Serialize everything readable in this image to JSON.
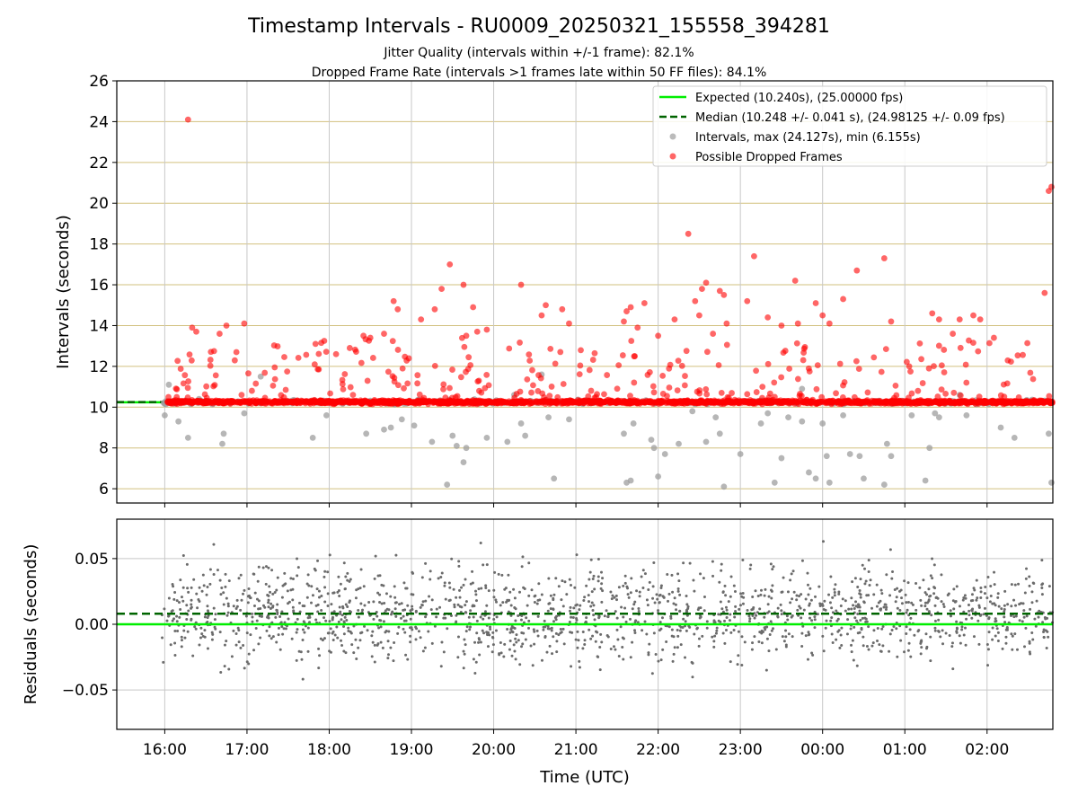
{
  "title": "Timestamp Intervals - RU0009_20250321_155558_394281",
  "subtitle_lines": [
    "Jitter Quality (intervals within +/-1 frame): 82.1%",
    "Dropped Frame Rate (intervals >1 frames late within 50 FF files): 84.1%"
  ],
  "colors": {
    "expected": "#00ee00",
    "median": "#006400",
    "intervals": "#9e9e9e",
    "dropped": "#ff0000",
    "major_grid": "#d2c07f",
    "grid": "#c8c8c8",
    "residuals": "#6b6b6b"
  },
  "chart_data": [
    {
      "type": "scatter",
      "name": "intervals-panel",
      "ylabel": "Intervals (seconds)",
      "xlabel": "",
      "xlim": [
        "15:25",
        "02:48"
      ],
      "ylim": [
        5.3,
        26
      ],
      "y_ticks": [
        6,
        8,
        10,
        12,
        14,
        16,
        18,
        20,
        22,
        24,
        26
      ],
      "x_ticks": [
        "16:00",
        "17:00",
        "18:00",
        "19:00",
        "20:00",
        "21:00",
        "22:00",
        "23:00",
        "00:00",
        "01:00",
        "02:00"
      ],
      "grid": true,
      "legend_position": "top-right",
      "legend": [
        "Expected (10.240s), (25.00000 fps)",
        "Median (10.248 +/- 0.041 s), (24.98125 +/- 0.09 fps)",
        "Intervals, max (24.127s), min (6.155s)",
        "Possible Dropped Frames"
      ],
      "series": [
        {
          "name": "Expected (10.240s), (25.00000 fps)",
          "kind": "hline",
          "y": 10.24,
          "x_range": [
            "15:25",
            "16:02"
          ]
        },
        {
          "name": "Median (10.248 +/- 0.041 s), (24.98125 +/- 0.09 fps)",
          "kind": "hline-dashed",
          "y": 10.248,
          "x_range": [
            "15:25",
            "16:02"
          ]
        },
        {
          "name": "Intervals, max (24.127s), min (6.155s)",
          "kind": "points",
          "count": 300,
          "baseline": 10.25,
          "highs": [
            [
              "16:03",
              11.1
            ],
            [
              "16:25",
              10.4
            ],
            [
              "17:10",
              11.5
            ],
            [
              "20:15",
              10.6
            ],
            [
              "20:35",
              11.6
            ],
            [
              "23:45",
              10.9
            ],
            [
              "01:40",
              10.6
            ]
          ],
          "lows": [
            [
              "16:00",
              9.6
            ],
            [
              "16:10",
              9.3
            ],
            [
              "16:17",
              8.5
            ],
            [
              "16:42",
              8.2
            ],
            [
              "16:43",
              8.7
            ],
            [
              "16:58",
              9.7
            ],
            [
              "17:48",
              8.5
            ],
            [
              "17:58",
              9.6
            ],
            [
              "18:27",
              8.7
            ],
            [
              "18:40",
              8.9
            ],
            [
              "18:45",
              9.0
            ],
            [
              "18:53",
              9.4
            ],
            [
              "19:02",
              9.1
            ],
            [
              "19:15",
              8.3
            ],
            [
              "19:26",
              6.2
            ],
            [
              "19:30",
              8.6
            ],
            [
              "19:33",
              8.1
            ],
            [
              "19:38",
              7.3
            ],
            [
              "19:40",
              8.0
            ],
            [
              "19:55",
              8.5
            ],
            [
              "20:10",
              8.3
            ],
            [
              "20:20",
              9.2
            ],
            [
              "20:23",
              8.6
            ],
            [
              "20:40",
              9.5
            ],
            [
              "20:44",
              6.5
            ],
            [
              "20:55",
              9.4
            ],
            [
              "21:35",
              8.7
            ],
            [
              "21:37",
              6.3
            ],
            [
              "21:40",
              6.4
            ],
            [
              "21:42",
              9.2
            ],
            [
              "21:55",
              8.4
            ],
            [
              "21:57",
              8.0
            ],
            [
              "22:00",
              6.6
            ],
            [
              "22:05",
              7.7
            ],
            [
              "22:15",
              8.2
            ],
            [
              "22:25",
              9.8
            ],
            [
              "22:35",
              8.3
            ],
            [
              "22:42",
              9.5
            ],
            [
              "22:45",
              8.7
            ],
            [
              "22:48",
              6.1
            ],
            [
              "23:00",
              7.7
            ],
            [
              "23:15",
              9.2
            ],
            [
              "23:20",
              9.7
            ],
            [
              "23:25",
              6.3
            ],
            [
              "23:30",
              7.5
            ],
            [
              "23:35",
              9.5
            ],
            [
              "23:45",
              9.3
            ],
            [
              "23:50",
              6.8
            ],
            [
              "23:55",
              6.5
            ],
            [
              "00:00",
              9.2
            ],
            [
              "00:03",
              7.6
            ],
            [
              "00:05",
              6.3
            ],
            [
              "00:15",
              9.6
            ],
            [
              "00:20",
              7.7
            ],
            [
              "00:27",
              7.6
            ],
            [
              "00:30",
              6.5
            ],
            [
              "00:45",
              6.2
            ],
            [
              "00:47",
              8.2
            ],
            [
              "00:50",
              7.6
            ],
            [
              "01:05",
              9.6
            ],
            [
              "01:15",
              6.4
            ],
            [
              "01:18",
              8.0
            ],
            [
              "01:22",
              9.7
            ],
            [
              "01:25",
              9.5
            ],
            [
              "01:45",
              9.6
            ],
            [
              "02:10",
              9.0
            ],
            [
              "02:20",
              8.5
            ],
            [
              "02:45",
              8.7
            ],
            [
              "02:47",
              6.3
            ]
          ]
        },
        {
          "name": "Possible Dropped Frames",
          "kind": "points",
          "count": 1900,
          "baseline": 10.25,
          "outliers": [
            [
              "16:17",
              24.1
            ],
            [
              "16:20",
              13.9
            ],
            [
              "16:23",
              13.7
            ],
            [
              "16:40",
              13.6
            ],
            [
              "16:45",
              14.0
            ],
            [
              "16:58",
              14.1
            ],
            [
              "17:50",
              13.1
            ],
            [
              "18:05",
              12.6
            ],
            [
              "18:15",
              12.9
            ],
            [
              "18:25",
              13.5
            ],
            [
              "18:30",
              13.4
            ],
            [
              "18:40",
              13.6
            ],
            [
              "18:47",
              15.2
            ],
            [
              "18:50",
              14.8
            ],
            [
              "19:07",
              14.3
            ],
            [
              "19:17",
              14.8
            ],
            [
              "19:22",
              15.8
            ],
            [
              "19:28",
              17.0
            ],
            [
              "19:38",
              16.0
            ],
            [
              "19:40",
              13.5
            ],
            [
              "19:45",
              14.9
            ],
            [
              "19:48",
              13.7
            ],
            [
              "19:55",
              13.8
            ],
            [
              "20:20",
              16.0
            ],
            [
              "20:35",
              14.5
            ],
            [
              "20:38",
              15.0
            ],
            [
              "20:50",
              14.8
            ],
            [
              "20:55",
              14.1
            ],
            [
              "21:35",
              14.2
            ],
            [
              "21:37",
              14.7
            ],
            [
              "21:40",
              14.9
            ],
            [
              "21:45",
              13.9
            ],
            [
              "21:50",
              15.1
            ],
            [
              "22:00",
              13.5
            ],
            [
              "22:12",
              14.3
            ],
            [
              "22:22",
              18.5
            ],
            [
              "22:27",
              15.2
            ],
            [
              "22:30",
              14.5
            ],
            [
              "22:32",
              15.8
            ],
            [
              "22:35",
              16.1
            ],
            [
              "22:40",
              13.6
            ],
            [
              "22:45",
              15.7
            ],
            [
              "22:48",
              15.5
            ],
            [
              "22:50",
              14.1
            ],
            [
              "23:05",
              15.2
            ],
            [
              "23:10",
              17.4
            ],
            [
              "23:20",
              14.4
            ],
            [
              "23:30",
              14.0
            ],
            [
              "23:40",
              16.2
            ],
            [
              "23:42",
              14.1
            ],
            [
              "23:55",
              15.1
            ],
            [
              "24:00",
              14.5
            ],
            [
              "24:05",
              14.1
            ],
            [
              "24:15",
              15.3
            ],
            [
              "24:25",
              16.7
            ],
            [
              "24:45",
              17.3
            ],
            [
              "24:50",
              14.2
            ],
            [
              "25:20",
              14.6
            ],
            [
              "25:25",
              14.3
            ],
            [
              "25:35",
              13.6
            ],
            [
              "25:40",
              14.3
            ],
            [
              "25:50",
              14.5
            ],
            [
              "25:55",
              14.3
            ],
            [
              "26:05",
              13.4
            ],
            [
              "26:42",
              15.6
            ],
            [
              "26:45",
              20.6
            ],
            [
              "26:47",
              20.8
            ]
          ]
        }
      ]
    },
    {
      "type": "scatter",
      "name": "residuals-panel",
      "ylabel": "Residuals (seconds)",
      "xlabel": "Time (UTC)",
      "xlim": [
        "15:25",
        "02:48"
      ],
      "ylim": [
        -0.08,
        0.08
      ],
      "y_ticks": [
        0.05,
        0.0,
        -0.05
      ],
      "y_tick_labels": [
        "0.05",
        "0.00",
        "−0.05"
      ],
      "x_ticks": [
        "16:00",
        "17:00",
        "18:00",
        "19:00",
        "20:00",
        "21:00",
        "22:00",
        "23:00",
        "00:00",
        "01:00",
        "02:00"
      ],
      "grid": true,
      "series": [
        {
          "name": "Expected",
          "kind": "hline",
          "y": 0.0
        },
        {
          "name": "Median",
          "kind": "hline-dashed",
          "y": 0.008
        },
        {
          "name": "Residuals",
          "kind": "points",
          "count": 1700,
          "center": 0.008,
          "spread": 0.018,
          "x_range": [
            "15:58",
            "02:48"
          ]
        }
      ]
    }
  ]
}
